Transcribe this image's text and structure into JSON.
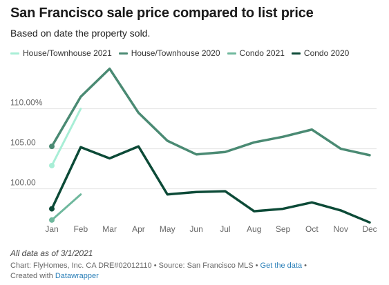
{
  "title": "San Francisco sale price compared to list price",
  "subtitle": "Based on date the property sold.",
  "note": "All data as of 3/1/2021",
  "source": {
    "chart_credit": "Chart: FlyHomes, Inc. CA DRE#02012110",
    "source_text": "Source: San Francisco MLS",
    "get_data_link": "Get the data",
    "separator": "•",
    "created_with": "Created with",
    "tool_link": "Datawrapper"
  },
  "colors": {
    "house_2021": "#a8eed6",
    "house_2020": "#4a8a73",
    "condo_2021": "#6fb89d",
    "condo_2020": "#0c4a37",
    "grid": "#e2e2e2",
    "tick_text": "#666666"
  },
  "chart_data": {
    "type": "line",
    "title": "San Francisco sale price compared to list price",
    "subtitle": "Based on date the property sold.",
    "x": [
      "Jan",
      "Feb",
      "Mar",
      "Apr",
      "May",
      "Jun",
      "Jul",
      "Aug",
      "Sep",
      "Oct",
      "Nov",
      "Dec"
    ],
    "y_ticks": [
      100,
      105,
      110
    ],
    "y_tick_labels": [
      "100.00",
      "105.00",
      "110.00%"
    ],
    "ylim": [
      96,
      116
    ],
    "grid": true,
    "legend_position": "top",
    "series": [
      {
        "name": "House/Townhouse 2021",
        "color": "#a8eed6",
        "width": 3,
        "values": [
          102.9,
          110.0,
          null,
          null,
          null,
          null,
          null,
          null,
          null,
          null,
          null,
          null
        ]
      },
      {
        "name": "House/Townhouse 2020",
        "color": "#4a8a73",
        "width": 3.5,
        "values": [
          105.3,
          111.5,
          115.0,
          109.5,
          106.0,
          104.3,
          104.6,
          105.8,
          106.5,
          107.4,
          105.0,
          104.2
        ]
      },
      {
        "name": "Condo 2021",
        "color": "#6fb89d",
        "width": 3,
        "values": [
          96.1,
          99.3,
          null,
          null,
          null,
          null,
          null,
          null,
          null,
          null,
          null,
          null
        ]
      },
      {
        "name": "Condo 2020",
        "color": "#0c4a37",
        "width": 3.5,
        "values": [
          97.5,
          105.2,
          103.8,
          105.3,
          99.3,
          99.6,
          99.7,
          97.2,
          97.5,
          98.3,
          97.3,
          95.8
        ]
      }
    ]
  }
}
